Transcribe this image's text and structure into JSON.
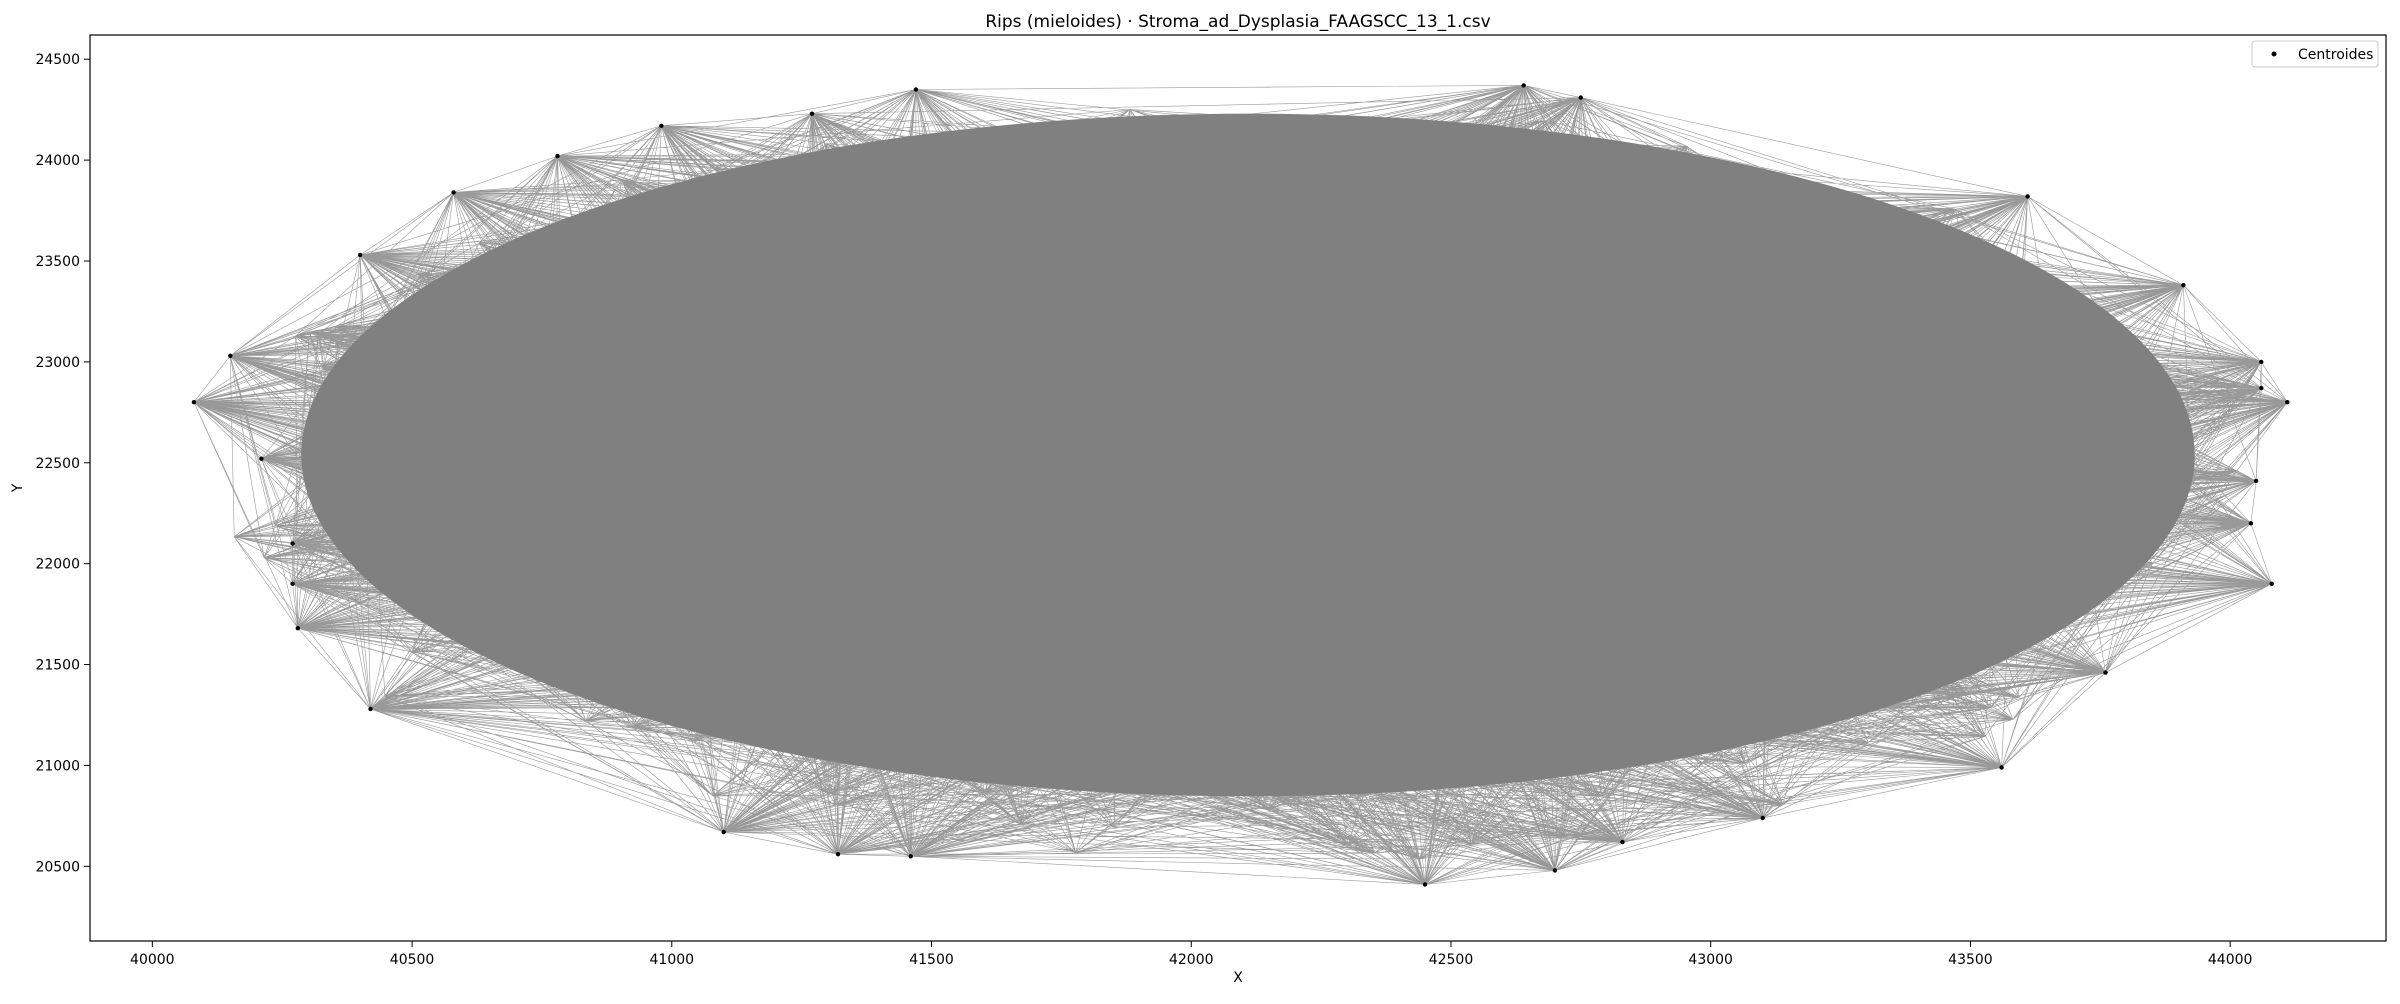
{
  "chart_data": {
    "type": "scatter",
    "title": "Rips (mieloides) · Stroma_ad_Dysplasia_FAAGSCC_13_1.csv",
    "xlabel": "X",
    "ylabel": "Y",
    "xlim": [
      39880,
      44300
    ],
    "ylim": [
      20130,
      24620
    ],
    "xticks": [
      40000,
      40500,
      41000,
      41500,
      42000,
      42500,
      43000,
      43500,
      44000
    ],
    "yticks": [
      20500,
      21000,
      21500,
      22000,
      22500,
      23000,
      23500,
      24000,
      24500
    ],
    "grid": false,
    "legend": {
      "placement": "top-right",
      "entries": [
        "Centroides"
      ]
    },
    "series": [
      {
        "name": "Centroides",
        "x": [
          40080,
          40150,
          40400,
          40580,
          40780,
          40980,
          41270,
          41470,
          42640,
          42750,
          43610,
          43910,
          44060,
          44110,
          44060,
          44050,
          44040,
          44080,
          43760,
          43560,
          43100,
          42830,
          42700,
          42450,
          41460,
          41320,
          41100,
          40420,
          40280,
          40270,
          40270,
          40210
        ],
        "y": [
          22800,
          23030,
          23530,
          23840,
          24020,
          24170,
          24230,
          24350,
          24370,
          24310,
          23820,
          23380,
          23000,
          22800,
          22870,
          22410,
          22200,
          21900,
          21460,
          20990,
          20740,
          20620,
          20480,
          20410,
          20550,
          20560,
          20670,
          21280,
          21680,
          21900,
          22100,
          22520
        ]
      }
    ],
    "edges": {
      "label": "",
      "color": "#808080"
    }
  },
  "colors": {
    "edge": "#808080",
    "point": "#000000",
    "axes": "#000000",
    "background": "#ffffff"
  }
}
